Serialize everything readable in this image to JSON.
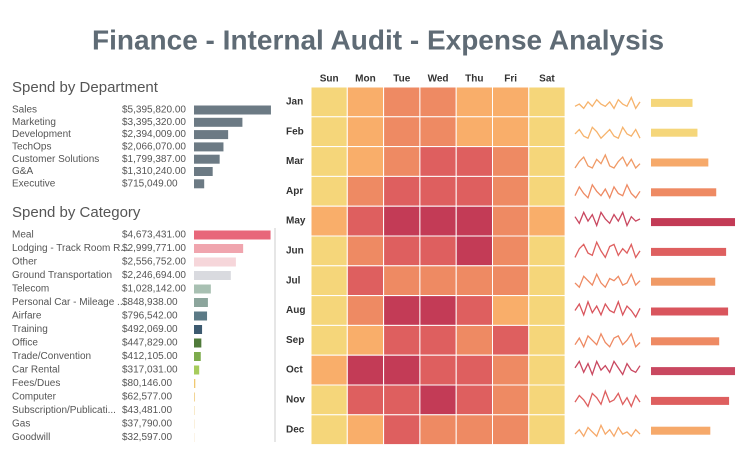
{
  "title": "Finance - Internal Audit - Expense Analysis",
  "chart_data": [
    {
      "type": "hbar",
      "title": "Spend by Department",
      "categories": [
        "Sales",
        "Marketing",
        "Development",
        "TechOps",
        "Customer Solutions",
        "G&A",
        "Executive"
      ],
      "values": [
        5395820,
        3395320,
        2394009,
        2066070,
        1799387,
        1310240,
        715049
      ],
      "value_labels": [
        "$5,395,820.00",
        "$3,395,320.00",
        "$2,394,009.00",
        "$2,066,070.00",
        "$1,799,387.00",
        "$1,310,240.00",
        "$715,049.00"
      ],
      "xlim": [
        0,
        5400000
      ],
      "color": "#6c7a84"
    },
    {
      "type": "hbar",
      "title": "Spend by Category",
      "categories": [
        "Meal",
        "Lodging - Track Room R...",
        "Other",
        "Ground Transportation",
        "Telecom",
        "Personal Car - Mileage ...",
        "Airfare",
        "Training",
        "Office",
        "Trade/Convention",
        "Car Rental",
        "Fees/Dues",
        "Computer",
        "Subscription/Publicati...",
        "Gas",
        "Goodwill"
      ],
      "values": [
        4673431,
        2999771,
        2556752,
        2246694,
        1028142,
        848938,
        796542,
        492069,
        447829,
        412105,
        317031,
        80146,
        62577,
        43481,
        37790,
        32597
      ],
      "value_labels": [
        "$4,673,431.00",
        "$2,999,771.00",
        "$2,556,752.00",
        "$2,246,694.00",
        "$1,028,142.00",
        "$848,938.00",
        "$796,542.00",
        "$492,069.00",
        "$447,829.00",
        "$412,105.00",
        "$317,031.00",
        "$80,146.00",
        "$62,577.00",
        "$43,481.00",
        "$37,790.00",
        "$32,597.00"
      ],
      "xlim": [
        0,
        4700000
      ],
      "colors": [
        "#e8677a",
        "#f0a5ae",
        "#f6d6da",
        "#d9dadf",
        "#a8c0b2",
        "#8ca59c",
        "#5b7a86",
        "#3d5a70",
        "#4f7a3a",
        "#7dab4c",
        "#a7cc5c",
        "#f0c870",
        "#f2d596",
        "#f5e1b5",
        "#f6e6c6",
        "#f7ebd3"
      ]
    },
    {
      "type": "heatmap",
      "x": [
        "Sun",
        "Mon",
        "Tue",
        "Wed",
        "Thu",
        "Fri",
        "Sat"
      ],
      "y": [
        "Jan",
        "Feb",
        "Mar",
        "Apr",
        "May",
        "Jun",
        "Jul",
        "Aug",
        "Sep",
        "Oct",
        "Nov",
        "Dec"
      ],
      "values": [
        [
          1,
          2,
          3,
          3,
          2,
          2,
          1
        ],
        [
          1,
          2,
          3,
          3,
          2,
          2,
          1
        ],
        [
          1,
          2,
          3,
          4,
          4,
          3,
          1
        ],
        [
          1,
          3,
          4,
          4,
          4,
          3,
          1
        ],
        [
          2,
          4,
          5,
          5,
          5,
          3,
          2
        ],
        [
          1,
          3,
          4,
          4,
          5,
          3,
          1
        ],
        [
          1,
          4,
          3,
          3,
          3,
          3,
          1
        ],
        [
          1,
          3,
          5,
          5,
          4,
          2,
          1
        ],
        [
          1,
          2,
          4,
          4,
          3,
          4,
          1
        ],
        [
          2,
          5,
          5,
          4,
          4,
          3,
          1
        ],
        [
          1,
          4,
          4,
          5,
          4,
          3,
          1
        ],
        [
          1,
          2,
          4,
          3,
          3,
          3,
          1
        ]
      ],
      "colors": [
        "#f5d67a",
        "#f9ae6a",
        "#ee8a63",
        "#de5f5f",
        "#c33b56"
      ]
    },
    {
      "type": "sparkline",
      "ylim": [
        0,
        10
      ],
      "series": [
        {
          "color": "#f6b36c",
          "values": [
            3,
            4,
            2,
            5,
            3,
            6,
            4,
            3,
            5,
            2,
            6,
            4,
            3,
            7,
            2,
            5
          ]
        },
        {
          "color": "#f6b36c",
          "values": [
            4,
            6,
            3,
            2,
            7,
            5,
            2,
            4,
            6,
            3,
            2,
            7,
            4,
            3,
            6,
            2
          ]
        },
        {
          "color": "#f09a66",
          "values": [
            2,
            5,
            7,
            3,
            2,
            6,
            4,
            8,
            3,
            2,
            5,
            7,
            3,
            6,
            2,
            4
          ]
        },
        {
          "color": "#ee8a63",
          "values": [
            3,
            7,
            4,
            2,
            8,
            5,
            3,
            6,
            2,
            7,
            4,
            3,
            8,
            4,
            2,
            5
          ]
        },
        {
          "color": "#c94860",
          "values": [
            7,
            4,
            9,
            5,
            8,
            3,
            9,
            6,
            4,
            8,
            5,
            9,
            3,
            7,
            5,
            6
          ]
        },
        {
          "color": "#de5f5f",
          "values": [
            2,
            6,
            8,
            4,
            3,
            9,
            5,
            2,
            7,
            8,
            3,
            6,
            4,
            8,
            2,
            5
          ]
        },
        {
          "color": "#ee8a63",
          "values": [
            4,
            2,
            7,
            5,
            3,
            8,
            4,
            2,
            6,
            5,
            7,
            3,
            4,
            8,
            3,
            5
          ]
        },
        {
          "color": "#d9555d",
          "values": [
            5,
            8,
            3,
            9,
            4,
            7,
            3,
            8,
            5,
            4,
            9,
            3,
            7,
            5,
            2,
            6
          ]
        },
        {
          "color": "#ee8a63",
          "values": [
            3,
            6,
            2,
            7,
            5,
            3,
            8,
            4,
            2,
            6,
            7,
            3,
            5,
            8,
            2,
            4
          ]
        },
        {
          "color": "#c94860",
          "values": [
            6,
            9,
            4,
            8,
            3,
            9,
            5,
            7,
            4,
            9,
            6,
            3,
            8,
            5,
            4,
            7
          ]
        },
        {
          "color": "#de5f5f",
          "values": [
            4,
            7,
            5,
            2,
            8,
            6,
            3,
            9,
            4,
            5,
            8,
            3,
            6,
            2,
            7,
            4
          ]
        },
        {
          "color": "#f6a96a",
          "values": [
            3,
            5,
            2,
            6,
            4,
            2,
            7,
            3,
            5,
            2,
            6,
            3,
            4,
            2,
            5,
            3
          ]
        }
      ]
    },
    {
      "type": "bar-monthly",
      "xlim": [
        0,
        86
      ],
      "values": [
        42,
        47,
        58,
        66,
        85,
        76,
        65,
        78,
        69,
        85,
        79,
        60
      ],
      "colors": [
        "#f5d67a",
        "#f5d67a",
        "#f6a96a",
        "#ee8a63",
        "#c33b56",
        "#de5f5f",
        "#f09a66",
        "#d9555d",
        "#ee8a63",
        "#c94860",
        "#de5f5f",
        "#f6a96a"
      ]
    }
  ]
}
